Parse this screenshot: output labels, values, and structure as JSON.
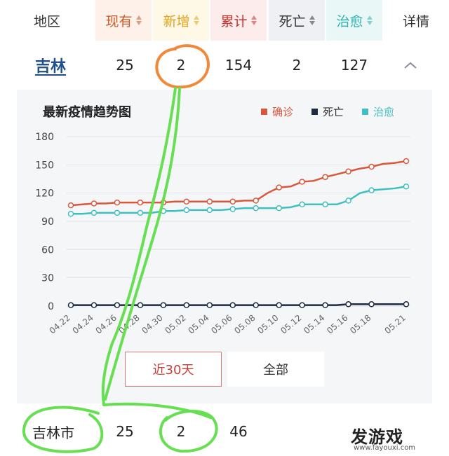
{
  "header": {
    "columns": [
      {
        "label": "地区",
        "sortable": false,
        "bg": "#ffffff",
        "color": "#333333"
      },
      {
        "label": "现有",
        "sortable": true,
        "bg": "#fdf1ea",
        "color": "#c85a2a"
      },
      {
        "label": "新增",
        "sortable": true,
        "bg": "#fef8e7",
        "color": "#e3a21a"
      },
      {
        "label": "累计",
        "sortable": true,
        "bg": "#fcecec",
        "color": "#c8302a"
      },
      {
        "label": "死亡",
        "sortable": true,
        "bg": "#eef0f3",
        "color": "#333333"
      },
      {
        "label": "治愈",
        "sortable": true,
        "bg": "#e9f7f6",
        "color": "#2fb3b0"
      },
      {
        "label": "详情",
        "sortable": false,
        "bg": "#ffffff",
        "color": "#333333"
      }
    ]
  },
  "province_row": {
    "name": "吉林",
    "current": "25",
    "new": "2",
    "total": "154",
    "deaths": "2",
    "cured": "127"
  },
  "chart": {
    "title": "最新疫情趋势图",
    "legend": [
      "确诊",
      "死亡",
      "治愈"
    ]
  },
  "chart_data": {
    "type": "line",
    "x": [
      "04.22",
      "04.23",
      "04.24",
      "04.25",
      "04.26",
      "04.27",
      "04.28",
      "04.29",
      "04.30",
      "05.01",
      "05.02",
      "05.03",
      "05.04",
      "05.05",
      "05.06",
      "05.07",
      "05.08",
      "05.09",
      "05.10",
      "05.11",
      "05.12",
      "05.13",
      "05.14",
      "05.15",
      "05.16",
      "05.17",
      "05.18",
      "05.19",
      "05.20",
      "05.21"
    ],
    "x_tick_labels": [
      "04.22",
      "04.24",
      "04.26",
      "04.28",
      "04.30",
      "05.02",
      "05.04",
      "05.06",
      "05.08",
      "05.10",
      "05.12",
      "05.14",
      "05.16",
      "05.18",
      "05.21"
    ],
    "ylim": [
      0,
      180
    ],
    "y_ticks": [
      0,
      30,
      60,
      90,
      120,
      150,
      180
    ],
    "grid": true,
    "legend_position": "top-right",
    "series": [
      {
        "name": "确诊",
        "color": "#d9573b",
        "values": [
          107,
          108,
          109,
          109,
          110,
          110,
          110,
          110,
          110,
          111,
          111,
          111,
          111,
          111,
          111,
          112,
          112,
          120,
          126,
          127,
          132,
          133,
          137,
          140,
          143,
          146,
          148,
          151,
          152,
          154
        ]
      },
      {
        "name": "死亡",
        "color": "#1c2c44",
        "values": [
          1,
          1,
          1,
          1,
          1,
          1,
          1,
          1,
          1,
          1,
          1,
          1,
          1,
          1,
          1,
          1,
          1,
          1,
          1,
          1,
          1,
          1,
          1,
          1,
          2,
          2,
          2,
          2,
          2,
          2
        ]
      },
      {
        "name": "治愈",
        "color": "#3fbfbf",
        "values": [
          98,
          98,
          99,
          99,
          99,
          99,
          99,
          99,
          101,
          101,
          102,
          102,
          102,
          102,
          103,
          104,
          104,
          104,
          104,
          105,
          108,
          108,
          108,
          108,
          112,
          120,
          123,
          124,
          125,
          127
        ]
      }
    ]
  },
  "buttons": {
    "recent30": "近30天",
    "all": "全部"
  },
  "city_row": {
    "name": "吉林市",
    "current": "25",
    "new": "2",
    "total": "46"
  },
  "watermark": {
    "brand": "发游戏",
    "site": "www.fayouxi.com"
  }
}
